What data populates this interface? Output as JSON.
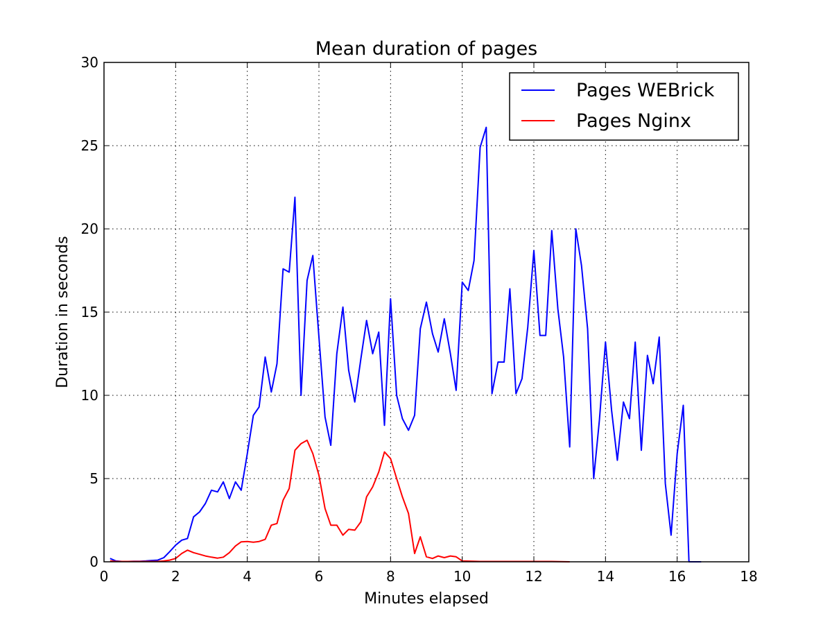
{
  "chart_data": {
    "type": "line",
    "title": "Mean duration of pages",
    "xlabel": "Minutes elapsed",
    "ylabel": "Duration in seconds",
    "xlim": [
      0,
      18
    ],
    "ylim": [
      0,
      30
    ],
    "xticks": [
      0,
      2,
      4,
      6,
      8,
      10,
      12,
      14,
      16,
      18
    ],
    "yticks": [
      0,
      5,
      10,
      15,
      20,
      25,
      30
    ],
    "grid": true,
    "legend_position": "top-right",
    "series": [
      {
        "name": "Pages WEBrick",
        "color": "#0000ff",
        "x": [
          0.17,
          0.33,
          0.5,
          0.67,
          0.83,
          1.0,
          1.17,
          1.33,
          1.5,
          1.67,
          1.83,
          2.0,
          2.17,
          2.33,
          2.5,
          2.67,
          2.83,
          3.0,
          3.17,
          3.33,
          3.5,
          3.67,
          3.83,
          4.0,
          4.17,
          4.33,
          4.5,
          4.67,
          4.83,
          5.0,
          5.17,
          5.33,
          5.5,
          5.67,
          5.83,
          6.0,
          6.17,
          6.33,
          6.5,
          6.67,
          6.83,
          7.0,
          7.17,
          7.33,
          7.5,
          7.67,
          7.83,
          8.0,
          8.17,
          8.33,
          8.5,
          8.67,
          8.83,
          9.0,
          9.17,
          9.33,
          9.5,
          9.67,
          9.83,
          10.0,
          10.17,
          10.33,
          10.5,
          10.67,
          10.83,
          11.0,
          11.17,
          11.33,
          11.5,
          11.67,
          11.83,
          12.0,
          12.17,
          12.33,
          12.5,
          12.67,
          12.83,
          13.0,
          13.17,
          13.33,
          13.5,
          13.67,
          13.83,
          14.0,
          14.17,
          14.33,
          14.5,
          14.67,
          14.83,
          15.0,
          15.17,
          15.33,
          15.5,
          15.67,
          15.83,
          16.0,
          16.17,
          16.33,
          16.5,
          16.67
        ],
        "values": [
          0.2,
          0.05,
          0.02,
          0.02,
          0.03,
          0.03,
          0.05,
          0.08,
          0.1,
          0.25,
          0.6,
          1.0,
          1.3,
          1.4,
          2.7,
          3.0,
          3.5,
          4.3,
          4.2,
          4.8,
          3.8,
          4.8,
          4.3,
          6.5,
          8.8,
          9.3,
          12.3,
          10.2,
          11.9,
          17.6,
          17.4,
          21.9,
          10.0,
          16.9,
          18.4,
          13.5,
          8.7,
          7.0,
          12.5,
          15.3,
          11.5,
          9.6,
          12.2,
          14.5,
          12.5,
          13.8,
          8.2,
          15.8,
          10.0,
          8.6,
          7.9,
          8.8,
          14.0,
          15.6,
          13.7,
          12.6,
          14.6,
          12.5,
          10.3,
          16.8,
          16.3,
          18.1,
          24.9,
          26.1,
          10.1,
          12.0,
          12.0,
          16.4,
          10.1,
          11.0,
          14.1,
          18.7,
          13.6,
          13.6,
          19.9,
          15.2,
          12.3,
          6.9,
          20.0,
          17.8,
          14.0,
          5.0,
          8.5,
          13.2,
          9.1,
          6.1,
          9.6,
          8.6,
          13.2,
          6.7,
          12.4,
          10.7,
          13.5,
          4.7,
          1.6,
          6.5,
          9.4,
          0.0,
          0.0,
          0.0
        ]
      },
      {
        "name": "Pages Nginx",
        "color": "#ff0000",
        "x": [
          0.17,
          0.33,
          0.5,
          0.67,
          0.83,
          1.0,
          1.17,
          1.33,
          1.5,
          1.67,
          1.83,
          2.0,
          2.17,
          2.33,
          2.5,
          2.67,
          2.83,
          3.0,
          3.17,
          3.33,
          3.5,
          3.67,
          3.83,
          4.0,
          4.17,
          4.33,
          4.5,
          4.67,
          4.83,
          5.0,
          5.17,
          5.33,
          5.5,
          5.67,
          5.83,
          6.0,
          6.17,
          6.33,
          6.5,
          6.67,
          6.83,
          7.0,
          7.17,
          7.33,
          7.5,
          7.67,
          7.83,
          8.0,
          8.17,
          8.33,
          8.5,
          8.67,
          8.83,
          9.0,
          9.17,
          9.33,
          9.5,
          9.67,
          9.83,
          10.0,
          10.5,
          11.0,
          11.5,
          12.0,
          12.5,
          13.0
        ],
        "values": [
          0.05,
          0.02,
          0.02,
          0.02,
          0.02,
          0.02,
          0.02,
          0.02,
          0.02,
          0.05,
          0.1,
          0.2,
          0.5,
          0.7,
          0.55,
          0.45,
          0.35,
          0.28,
          0.22,
          0.28,
          0.55,
          0.95,
          1.2,
          1.22,
          1.18,
          1.22,
          1.35,
          2.2,
          2.3,
          3.7,
          4.4,
          6.7,
          7.1,
          7.3,
          6.5,
          5.2,
          3.2,
          2.2,
          2.2,
          1.6,
          1.95,
          1.9,
          2.4,
          3.9,
          4.5,
          5.4,
          6.6,
          6.2,
          5.0,
          3.9,
          2.9,
          0.5,
          1.5,
          0.3,
          0.2,
          0.35,
          0.25,
          0.35,
          0.3,
          0.05,
          0.02,
          0.02,
          0.02,
          0.02,
          0.02,
          0.0
        ]
      }
    ]
  }
}
